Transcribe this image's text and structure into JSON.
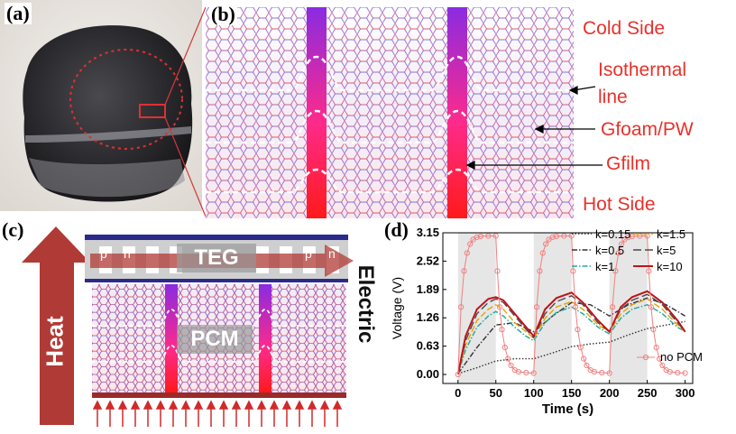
{
  "panels": {
    "a": {
      "label": "(a)"
    },
    "b": {
      "label": "(b)",
      "annotations": {
        "cold_side": "Cold Side",
        "isothermal_1": "Isothermal",
        "isothermal_2": "line",
        "gfoam_pw": "Gfoam/PW",
        "gfilm": "Gfilm",
        "hot_side": "Hot Side"
      }
    },
    "c": {
      "label": "(c)",
      "teg": "TEG",
      "pcm": "PCM",
      "heat": "Heat",
      "electric": "Electric",
      "p": "p",
      "n": "n"
    },
    "d": {
      "label": "(d)"
    }
  },
  "colors": {
    "annotation_red": "#e8312a",
    "arrow_red": "#b03a35",
    "film_top": "#8a2be2",
    "film_bottom": "#ff1a1a"
  },
  "chart_data": {
    "type": "line",
    "xlabel": "Time (s)",
    "ylabel": "Voltage (V)",
    "xlim": [
      -20,
      310
    ],
    "ylim": [
      -0.2,
      3.15
    ],
    "xticks": [
      "0",
      "50",
      "100",
      "150",
      "200",
      "250",
      "300"
    ],
    "yticks": [
      "0.00",
      "0.63",
      "1.26",
      "1.89",
      "2.52",
      "3.15"
    ],
    "shaded_intervals": [
      [
        0,
        50
      ],
      [
        100,
        150
      ],
      [
        200,
        250
      ]
    ],
    "series": [
      {
        "name": "k=0.15",
        "style": "dotted",
        "color": "#333333",
        "x": [
          0,
          25,
          50,
          75,
          100,
          125,
          150,
          175,
          200,
          225,
          250,
          275,
          300
        ],
        "y": [
          0.02,
          0.15,
          0.3,
          0.35,
          0.35,
          0.48,
          0.62,
          0.68,
          0.72,
          0.88,
          1.02,
          1.1,
          1.18
        ]
      },
      {
        "name": "k=0.5",
        "style": "dashdot",
        "color": "#333333",
        "x": [
          0,
          25,
          50,
          75,
          100,
          125,
          150,
          175,
          200,
          225,
          250,
          275,
          300
        ],
        "y": [
          0.02,
          0.6,
          1.1,
          1.15,
          0.95,
          1.3,
          1.6,
          1.55,
          1.3,
          1.55,
          1.7,
          1.55,
          1.3
        ]
      },
      {
        "name": "k=1",
        "style": "dashdot",
        "color": "#20a89c",
        "x": [
          0,
          10,
          25,
          40,
          50,
          60,
          75,
          90,
          100,
          115,
          130,
          150,
          165,
          185,
          200,
          215,
          230,
          250,
          270,
          290,
          300
        ],
        "y": [
          0.0,
          0.55,
          1.05,
          1.3,
          1.4,
          1.3,
          1.05,
          0.85,
          0.75,
          1.15,
          1.38,
          1.5,
          1.35,
          1.05,
          0.9,
          1.25,
          1.45,
          1.55,
          1.35,
          1.05,
          0.95
        ]
      },
      {
        "name": "k=1.5",
        "style": "dashed",
        "color": "#e6a100",
        "x": [
          0,
          10,
          25,
          40,
          50,
          60,
          75,
          90,
          100,
          115,
          130,
          150,
          165,
          185,
          200,
          215,
          230,
          250,
          270,
          290,
          300
        ],
        "y": [
          0.0,
          0.65,
          1.2,
          1.45,
          1.55,
          1.45,
          1.15,
          0.95,
          0.8,
          1.25,
          1.5,
          1.62,
          1.45,
          1.1,
          0.95,
          1.35,
          1.55,
          1.68,
          1.45,
          1.1,
          0.95
        ]
      },
      {
        "name": "k=5",
        "style": "longdash",
        "color": "#4a4a4a",
        "x": [
          0,
          10,
          25,
          40,
          50,
          60,
          75,
          90,
          100,
          115,
          130,
          150,
          165,
          185,
          200,
          215,
          230,
          250,
          270,
          290,
          300
        ],
        "y": [
          0.0,
          0.75,
          1.35,
          1.6,
          1.68,
          1.6,
          1.3,
          1.0,
          0.82,
          1.35,
          1.62,
          1.75,
          1.55,
          1.15,
          0.95,
          1.45,
          1.65,
          1.78,
          1.55,
          1.15,
          0.95
        ]
      },
      {
        "name": "k=10",
        "style": "solid",
        "color": "#c0151a",
        "x": [
          0,
          10,
          25,
          40,
          50,
          60,
          75,
          90,
          100,
          115,
          130,
          150,
          165,
          185,
          200,
          215,
          230,
          250,
          270,
          290,
          300
        ],
        "y": [
          0.0,
          0.85,
          1.45,
          1.68,
          1.72,
          1.65,
          1.35,
          1.05,
          0.85,
          1.45,
          1.7,
          1.82,
          1.6,
          1.2,
          0.95,
          1.5,
          1.72,
          1.85,
          1.6,
          1.2,
          0.95
        ]
      },
      {
        "name": "no PCM",
        "style": "circles",
        "color": "#f08080",
        "x": [
          0,
          4,
          8,
          12,
          16,
          20,
          25,
          30,
          40,
          50,
          52,
          55,
          58,
          62,
          66,
          70,
          75,
          80,
          90,
          100,
          104,
          108,
          112,
          116,
          120,
          125,
          130,
          140,
          150,
          152,
          155,
          158,
          162,
          166,
          170,
          175,
          180,
          190,
          200,
          204,
          208,
          212,
          216,
          220,
          225,
          230,
          240,
          250,
          252,
          255,
          258,
          262,
          266,
          270,
          275,
          280,
          290,
          300
        ],
        "y": [
          0.0,
          1.5,
          2.3,
          2.7,
          2.9,
          3.0,
          3.05,
          3.07,
          3.08,
          3.08,
          2.3,
          1.5,
          1.0,
          0.6,
          0.35,
          0.2,
          0.1,
          0.06,
          0.04,
          0.03,
          1.5,
          2.3,
          2.7,
          2.9,
          3.0,
          3.05,
          3.07,
          3.08,
          3.08,
          2.3,
          1.5,
          1.0,
          0.6,
          0.35,
          0.2,
          0.1,
          0.06,
          0.04,
          0.03,
          1.5,
          2.3,
          2.7,
          2.9,
          3.0,
          3.05,
          3.07,
          3.08,
          3.08,
          2.3,
          1.5,
          1.0,
          0.6,
          0.35,
          0.2,
          0.1,
          0.06,
          0.04,
          0.03
        ]
      }
    ]
  }
}
